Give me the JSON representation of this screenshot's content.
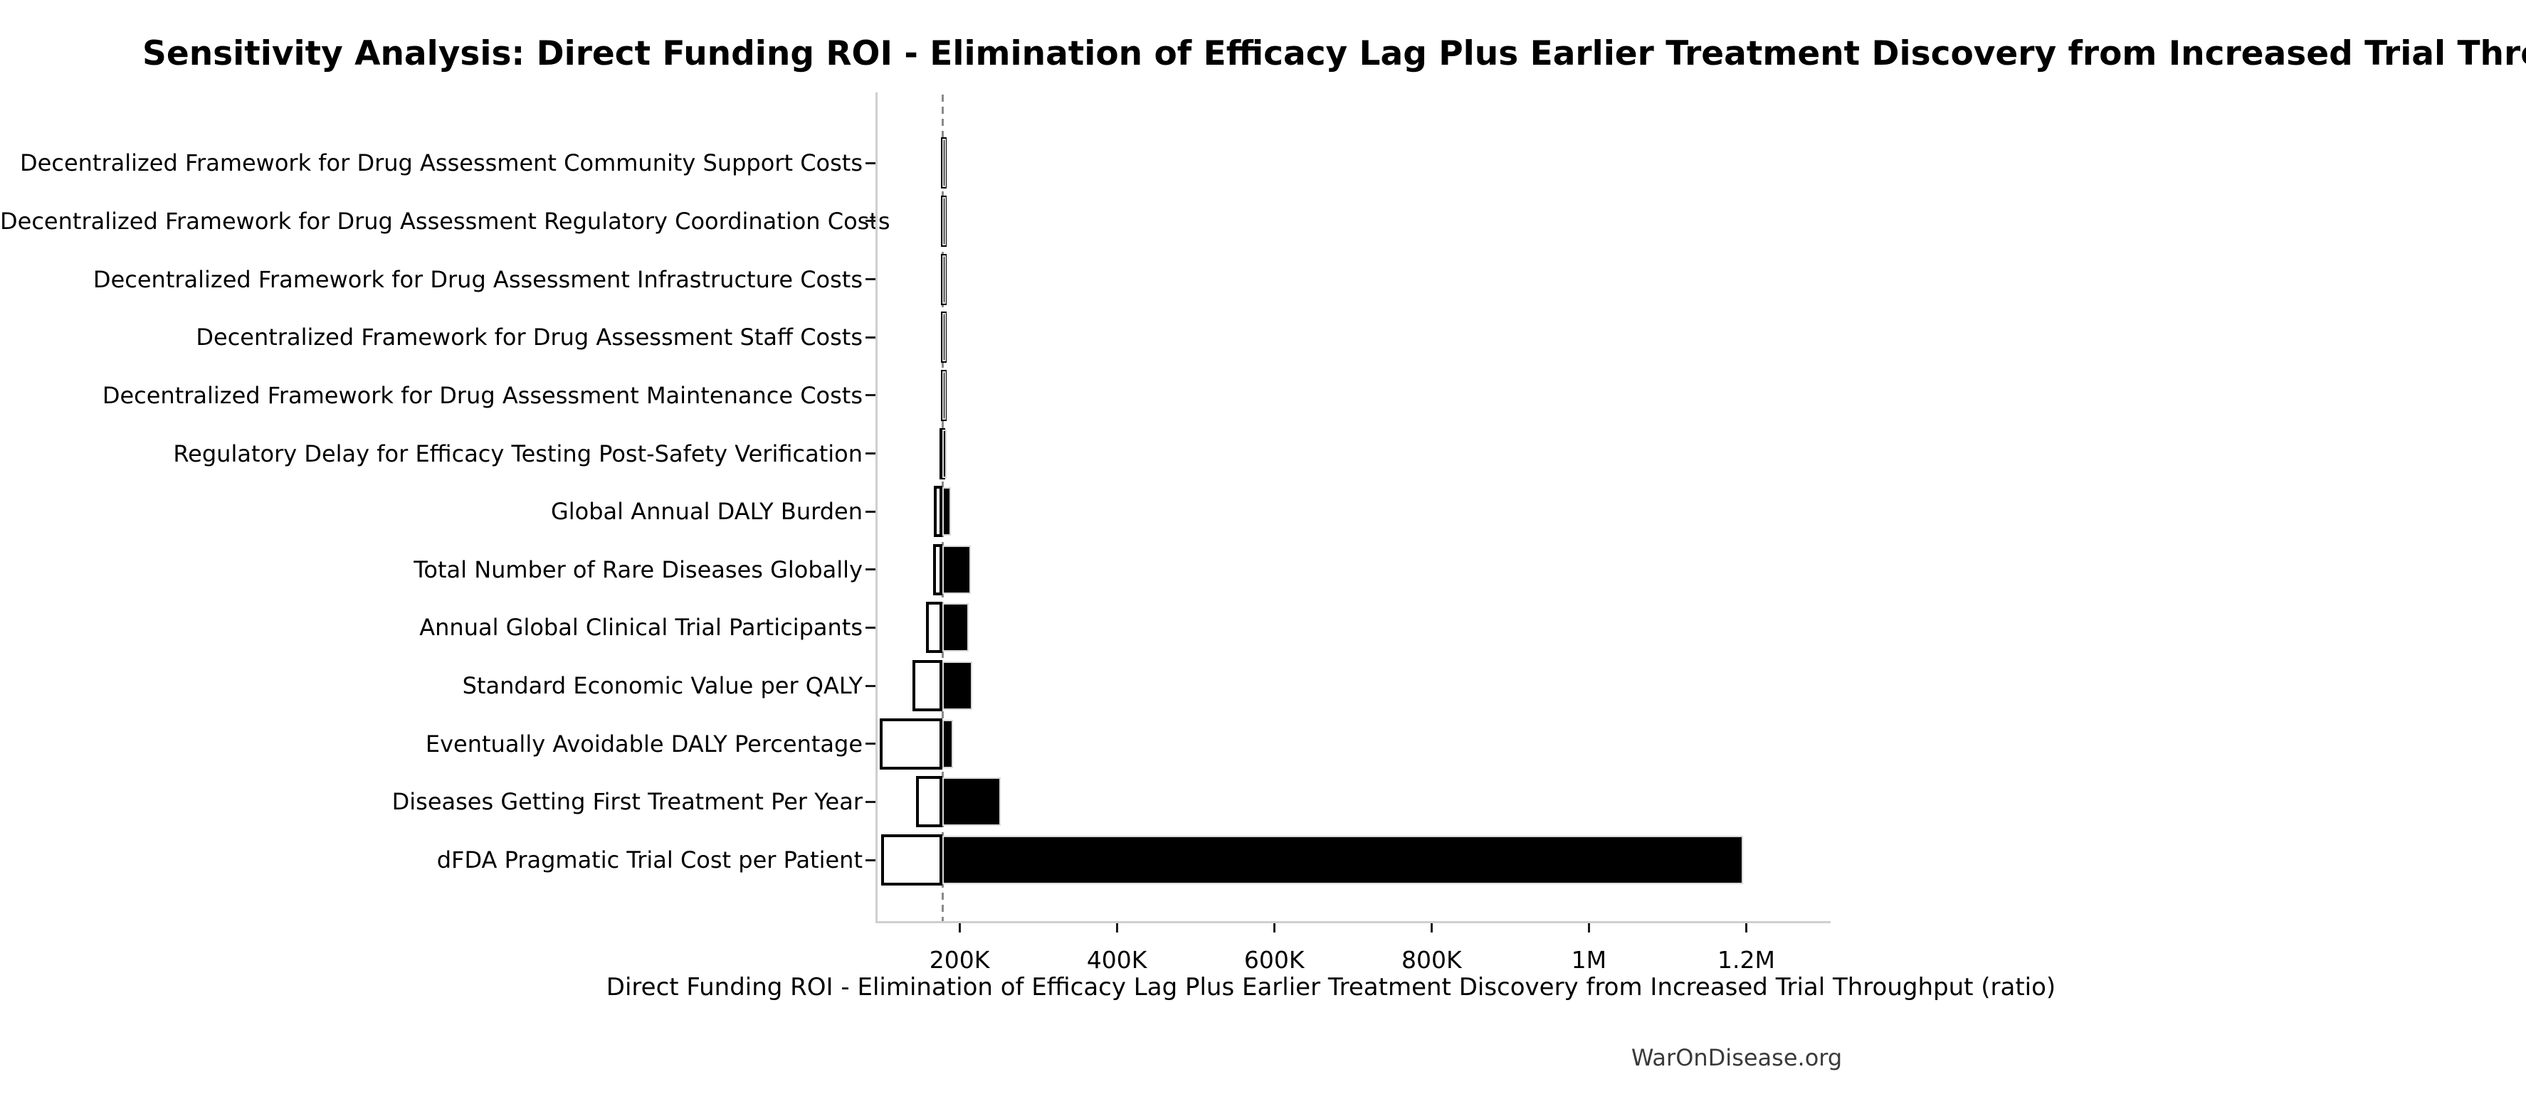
{
  "page": {
    "footer": "WarOnDisease.org"
  },
  "chart_data": {
    "type": "bar",
    "subtype": "tornado-sensitivity",
    "orientation": "horizontal",
    "title": "Sensitivity Analysis: Direct Funding ROI - Elimination of Efficacy Lag Plus Earlier Treatment Discovery from Increased Trial Throughput",
    "xlabel": "Direct Funding ROI - Elimination of Efficacy Lag Plus Earlier Treatment Discovery from Increased Trial Throughput (ratio)",
    "baseline_value": 178600,
    "xlim": [
      95000,
      1300000
    ],
    "grid": false,
    "legend": "none",
    "xticks": [
      {
        "value": 200000,
        "label": "200K"
      },
      {
        "value": 400000,
        "label": "400K"
      },
      {
        "value": 600000,
        "label": "600K"
      },
      {
        "value": 800000,
        "label": "800K"
      },
      {
        "value": 1000000,
        "label": "1M"
      },
      {
        "value": 1200000,
        "label": "1.2M"
      }
    ],
    "categories": [
      "Decentralized Framework for Drug Assessment Community Support Costs",
      "Decentralized Framework for Drug Assessment Regulatory Coordination Costs",
      "Decentralized Framework for Drug Assessment Infrastructure Costs",
      "Decentralized Framework for Drug Assessment Staff Costs",
      "Decentralized Framework for Drug Assessment Maintenance Costs",
      "Regulatory Delay for Efficacy Testing Post-Safety Verification",
      "Global Annual DALY Burden",
      "Total Number of Rare Diseases Globally",
      "Annual Global Clinical Trial Participants",
      "Standard Economic Value per QALY",
      "Eventually Avoidable DALY Percentage",
      "Diseases Getting First Treatment Per Year",
      "dFDA Pragmatic Trial Cost per Patient"
    ],
    "series": [
      {
        "name": "low_estimate",
        "style": "white-fill-black-edge",
        "values": [
          176500,
          176300,
          176000,
          176000,
          176800,
          174500,
          167700,
          166500,
          157000,
          140500,
          98500,
          145000,
          100000
        ]
      },
      {
        "name": "high_estimate",
        "style": "black-fill",
        "values": [
          182000,
          181700,
          182000,
          181800,
          181400,
          183400,
          189400,
          214000,
          212000,
          216500,
          191500,
          252000,
          1196000
        ]
      }
    ],
    "colors": {
      "background": "#ffffff",
      "bar_high_fill": "#000000",
      "bar_low_fill": "#ffffff",
      "bar_low_edge": "#000000",
      "baseline_dash": "#8a8a8a",
      "spine": "#cfcfcf",
      "tick_mark": "#1a1a1a",
      "text": "#000000",
      "footer_text": "#3a3a3a"
    }
  }
}
